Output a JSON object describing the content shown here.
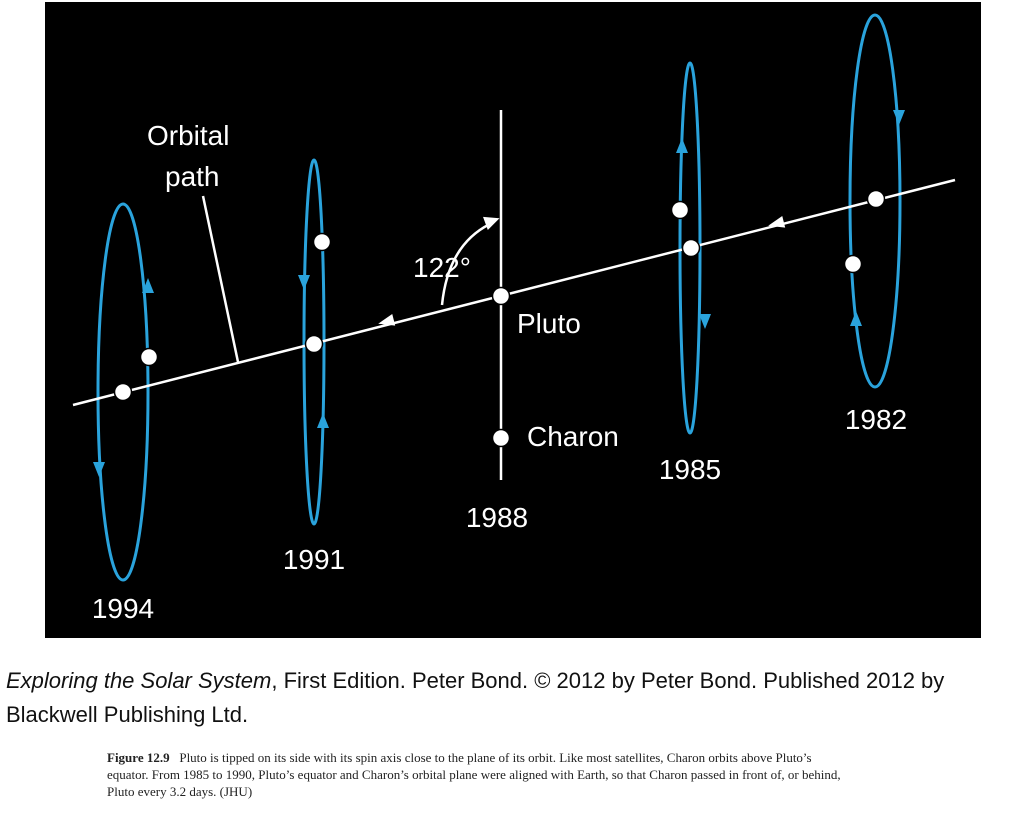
{
  "diagram": {
    "labels": {
      "orbital_line1": "Orbital",
      "orbital_line2": "path",
      "angle": "122°",
      "pluto": "Pluto",
      "charon": "Charon"
    },
    "years": [
      "1994",
      "1991",
      "1988",
      "1985",
      "1982"
    ]
  },
  "credit": {
    "title": "Exploring the Solar System",
    "line1_rest": ", First Edition. Peter Bond. © 2012 by Peter Bond. Published 2012 by",
    "line2": "Blackwell Publishing Ltd."
  },
  "caption": {
    "label": "Figure 12.9",
    "lines": [
      "Pluto is tipped on its side with its spin axis close to the plane of its orbit. Like most satellites, Charon orbits above Pluto’s",
      "equator. From 1985 to 1990, Pluto’s equator and Charon’s orbital plane were aligned with Earth, so that Charon passed in front of, or behind,",
      "Pluto every 3.2 days. (JHU)"
    ]
  }
}
